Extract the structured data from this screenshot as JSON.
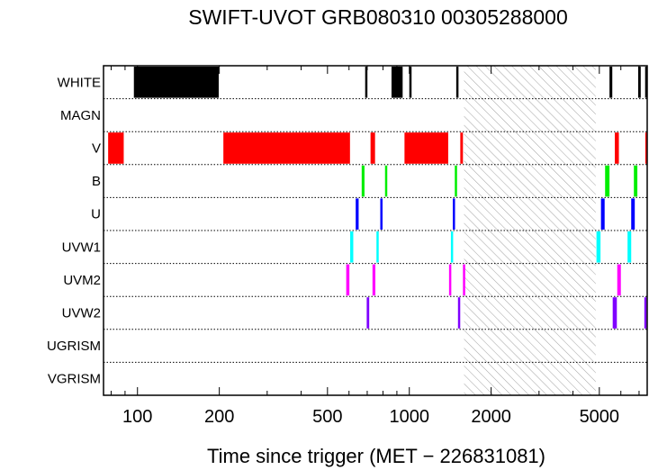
{
  "chart_data": {
    "type": "timeline",
    "title": "SWIFT-UVOT GRB080310 00305288000",
    "xlabel": "Time since trigger (MET − 226831081)",
    "xscale": "log",
    "xlim": [
      75,
      7500
    ],
    "xticks": [
      {
        "value": 100,
        "label": "100"
      },
      {
        "value": 200,
        "label": "200"
      },
      {
        "value": 500,
        "label": "500"
      },
      {
        "value": 1000,
        "label": "1000"
      },
      {
        "value": 2000,
        "label": "2000"
      },
      {
        "value": 5000,
        "label": "5000"
      }
    ],
    "minor_ticks": [
      80,
      90,
      300,
      400,
      600,
      700,
      800,
      900,
      3000,
      4000,
      6000,
      7000
    ],
    "hatched_gap": [
      1590,
      4850
    ],
    "rows": [
      {
        "name": "WHITE",
        "color": "#000000",
        "intervals": [
          [
            97,
            199
          ],
          [
            688,
            698
          ],
          [
            860,
            945
          ],
          [
            1000,
            1006
          ],
          [
            1488,
            1497
          ],
          [
            5450,
            5580
          ],
          [
            6950,
            7100
          ],
          [
            7370,
            7450
          ]
        ]
      },
      {
        "name": "MAGN",
        "color": "#000000",
        "intervals": []
      },
      {
        "name": "V",
        "color": "#ff0000",
        "intervals": [
          [
            78,
            89
          ],
          [
            207,
            605
          ],
          [
            720,
            748
          ],
          [
            960,
            1390
          ],
          [
            1540,
            1575
          ],
          [
            5700,
            5900
          ],
          [
            7380,
            7500
          ]
        ]
      },
      {
        "name": "B",
        "color": "#00ee00",
        "intervals": [
          [
            668,
            684
          ],
          [
            814,
            828
          ],
          [
            1470,
            1482
          ],
          [
            5250,
            5450
          ],
          [
            6700,
            6900
          ]
        ]
      },
      {
        "name": "U",
        "color": "#0000ff",
        "intervals": [
          [
            635,
            651
          ],
          [
            782,
            796
          ],
          [
            1445,
            1458
          ],
          [
            5070,
            5230
          ],
          [
            6550,
            6750
          ]
        ]
      },
      {
        "name": "UVW1",
        "color": "#00ffff",
        "intervals": [
          [
            606,
            622
          ],
          [
            757,
            771
          ],
          [
            1422,
            1435
          ],
          [
            4880,
            5050
          ],
          [
            6350,
            6550
          ]
        ]
      },
      {
        "name": "UVM2",
        "color": "#ff00ff",
        "intervals": [
          [
            586,
            602
          ],
          [
            732,
            750
          ],
          [
            1400,
            1412
          ],
          [
            1575,
            1590
          ],
          [
            5820,
            6000
          ]
        ]
      },
      {
        "name": "UVW2",
        "color": "#7f00ff",
        "intervals": [
          [
            697,
            712
          ],
          [
            1510,
            1525
          ],
          [
            5600,
            5800
          ],
          [
            7320,
            7450
          ]
        ]
      },
      {
        "name": "UGRISM",
        "color": "#000000",
        "intervals": []
      },
      {
        "name": "VGRISM",
        "color": "#000000",
        "intervals": []
      }
    ]
  }
}
